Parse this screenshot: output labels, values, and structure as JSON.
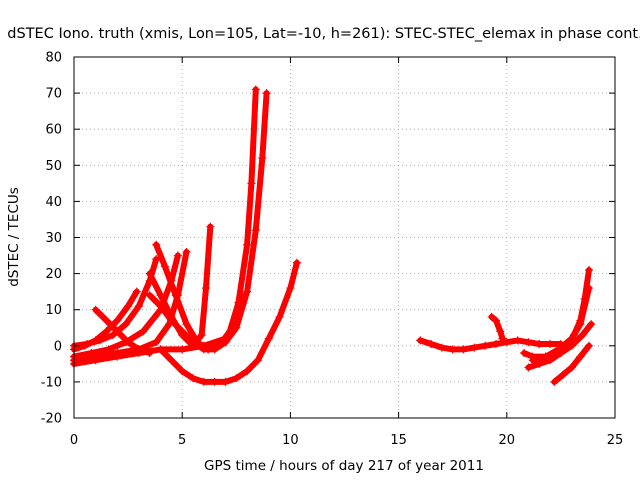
{
  "chart_data": {
    "type": "scatter",
    "title": "dSTEC Iono. truth (xmis, Lon=105, Lat=-10, h=261): STEC-STEC_elemax in phase cont.",
    "xlabel": "GPS time / hours of day 217 of year 2011",
    "ylabel": "dSTEC  / TECUs",
    "xlim": [
      0,
      25
    ],
    "ylim": [
      -20,
      80
    ],
    "xticks": [
      0,
      5,
      10,
      15,
      20,
      25
    ],
    "yticks": [
      -20,
      -10,
      0,
      10,
      20,
      30,
      40,
      50,
      60,
      70,
      80
    ],
    "grid": true,
    "marker": "plus",
    "color": "#ff0000",
    "series": [
      {
        "x": [
          0.0,
          0.5,
          1.0,
          1.5,
          2.0,
          2.5,
          2.9
        ],
        "y": [
          -1,
          0,
          1.5,
          4,
          7,
          11,
          15
        ]
      },
      {
        "x": [
          0.0,
          0.6,
          1.2,
          1.8,
          2.4,
          3.0,
          3.5,
          3.8
        ],
        "y": [
          0,
          0.5,
          1.5,
          3,
          6,
          11,
          18,
          24
        ]
      },
      {
        "x": [
          0.0,
          0.8,
          1.6,
          2.4,
          3.2,
          4.0,
          4.5,
          4.8
        ],
        "y": [
          -3,
          -2,
          -1,
          1,
          4,
          10,
          18,
          25
        ]
      },
      {
        "x": [
          0.0,
          1.0,
          2.0,
          3.0,
          3.8,
          4.4,
          4.8,
          5.2
        ],
        "y": [
          -4,
          -3,
          -2,
          -1,
          1,
          6,
          14,
          26
        ]
      },
      {
        "x": [
          1.0,
          1.5,
          2.0,
          2.5,
          3.0,
          3.5
        ],
        "y": [
          10,
          7,
          4,
          1,
          -1,
          -2
        ]
      },
      {
        "x": [
          0.0,
          1.0,
          2.0,
          3.0,
          4.0,
          5.0,
          6.0,
          7.0,
          7.5,
          7.9
        ],
        "y": [
          -5,
          -4,
          -3,
          -2,
          -1,
          -1,
          0,
          2,
          6,
          14
        ]
      },
      {
        "x": [
          3.8,
          4.2,
          4.7,
          5.2,
          5.7,
          6.2,
          6.7,
          7.2,
          7.6,
          8.0,
          8.2,
          8.4
        ],
        "y": [
          28,
          22,
          14,
          6,
          1,
          -1,
          0,
          4,
          12,
          28,
          45,
          71
        ]
      },
      {
        "x": [
          3.5,
          4.0,
          4.5,
          5.0,
          5.5,
          6.0,
          6.5,
          7.0,
          7.5,
          8.0,
          8.4,
          8.7,
          8.9
        ],
        "y": [
          14,
          11,
          7,
          4,
          1,
          -1,
          -1,
          1,
          5,
          15,
          32,
          52,
          70
        ]
      },
      {
        "x": [
          3.5,
          4.0,
          4.5,
          5.0,
          5.5,
          5.9,
          6.1,
          6.3
        ],
        "y": [
          20,
          14,
          8,
          3,
          0,
          3,
          16,
          33
        ]
      },
      {
        "x": [
          4.0,
          4.5,
          5.0,
          5.5,
          6.0,
          6.5,
          7.0,
          7.5,
          8.0,
          8.5,
          9.0,
          9.5,
          10.0,
          10.3
        ],
        "y": [
          -1,
          -4,
          -7,
          -9,
          -10,
          -10,
          -10,
          -9,
          -7,
          -4,
          2,
          8,
          16,
          23
        ]
      },
      {
        "x": [
          16.0,
          16.5,
          17.0,
          17.5,
          18.0,
          18.5,
          19.0,
          19.5,
          20.0,
          20.5,
          21.0,
          21.5,
          22.0,
          22.5
        ],
        "y": [
          1.5,
          0.5,
          -0.5,
          -1,
          -1,
          -0.5,
          0,
          0.5,
          1,
          1.5,
          1,
          0.5,
          0.5,
          0.5
        ]
      },
      {
        "x": [
          19.3,
          19.5,
          19.7,
          19.8
        ],
        "y": [
          8,
          7,
          4,
          2
        ]
      },
      {
        "x": [
          20.8,
          21.2,
          21.8,
          22.4,
          22.8,
          23.1,
          23.4,
          23.6,
          23.8
        ],
        "y": [
          -2,
          -3,
          -3,
          -2,
          0,
          3,
          7,
          13,
          21
        ]
      },
      {
        "x": [
          21.2,
          21.8,
          22.4,
          23.0,
          23.4,
          23.8
        ],
        "y": [
          -4,
          -3,
          -1,
          2,
          6,
          16
        ]
      },
      {
        "x": [
          21.0,
          21.5,
          22.0,
          22.5,
          23.0,
          23.5,
          23.9
        ],
        "y": [
          -6,
          -5,
          -4,
          -2,
          0,
          3,
          6
        ]
      },
      {
        "x": [
          22.2,
          22.6,
          23.0,
          23.4,
          23.8
        ],
        "y": [
          -10,
          -8,
          -6,
          -3,
          0
        ]
      }
    ]
  }
}
